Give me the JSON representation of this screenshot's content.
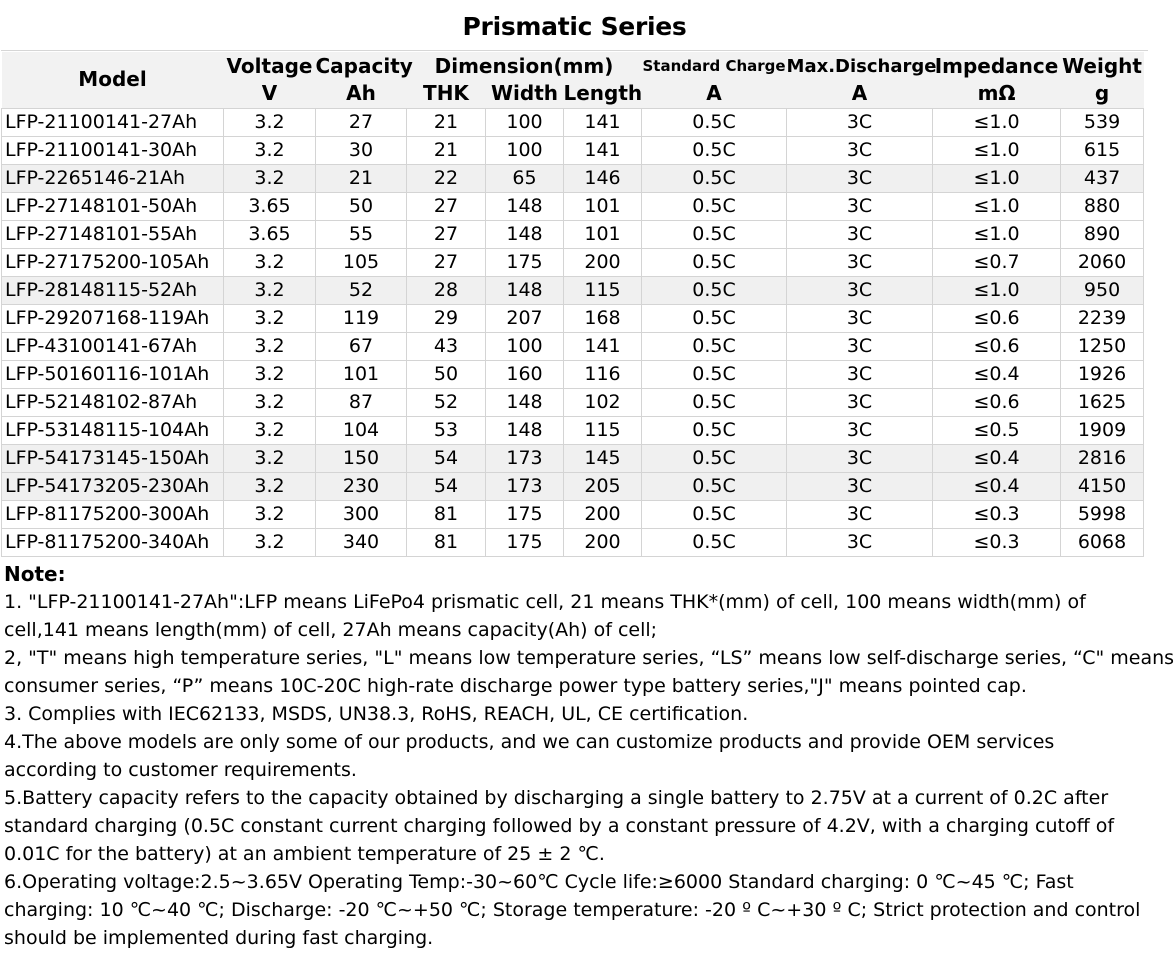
{
  "title": "Prismatic Series",
  "headers": {
    "model": "Model",
    "voltage": "Voltage",
    "voltage_unit": "V",
    "capacity": "Capacity",
    "capacity_unit": "Ah",
    "dimension": "Dimension(mm)",
    "thk": "THK",
    "width": "Width",
    "length": "Length",
    "std_charge": "Standard Charge",
    "std_charge_unit": "A",
    "max_discharge": "Max.Discharge",
    "max_discharge_unit": "A",
    "impedance": "Impedance",
    "impedance_unit": "mΩ",
    "weight": "Weight",
    "weight_unit": "g"
  },
  "rows": [
    {
      "model": "LFP-21100141-27Ah",
      "voltage": "3.2",
      "capacity": "27",
      "thk": "21",
      "width": "100",
      "length": "141",
      "std_charge": "0.5C",
      "max_discharge": "3C",
      "impedance": "≤1.0",
      "weight": "539"
    },
    {
      "model": "LFP-21100141-30Ah",
      "voltage": "3.2",
      "capacity": "30",
      "thk": "21",
      "width": "100",
      "length": "141",
      "std_charge": "0.5C",
      "max_discharge": "3C",
      "impedance": "≤1.0",
      "weight": "615"
    },
    {
      "model": "LFP-2265146-21Ah",
      "voltage": "3.2",
      "capacity": "21",
      "thk": "22",
      "width": "65",
      "length": "146",
      "std_charge": "0.5C",
      "max_discharge": "3C",
      "impedance": "≤1.0",
      "weight": "437"
    },
    {
      "model": "LFP-27148101-50Ah",
      "voltage": "3.65",
      "capacity": "50",
      "thk": "27",
      "width": "148",
      "length": "101",
      "std_charge": "0.5C",
      "max_discharge": "3C",
      "impedance": "≤1.0",
      "weight": "880"
    },
    {
      "model": "LFP-27148101-55Ah",
      "voltage": "3.65",
      "capacity": "55",
      "thk": "27",
      "width": "148",
      "length": "101",
      "std_charge": "0.5C",
      "max_discharge": "3C",
      "impedance": "≤1.0",
      "weight": "890"
    },
    {
      "model": "LFP-27175200-105Ah",
      "voltage": "3.2",
      "capacity": "105",
      "thk": "27",
      "width": "175",
      "length": "200",
      "std_charge": "0.5C",
      "max_discharge": "3C",
      "impedance": "≤0.7",
      "weight": "2060"
    },
    {
      "model": "LFP-28148115-52Ah",
      "voltage": "3.2",
      "capacity": "52",
      "thk": "28",
      "width": "148",
      "length": "115",
      "std_charge": "0.5C",
      "max_discharge": "3C",
      "impedance": "≤1.0",
      "weight": "950"
    },
    {
      "model": "LFP-29207168-119Ah",
      "voltage": "3.2",
      "capacity": "119",
      "thk": "29",
      "width": "207",
      "length": "168",
      "std_charge": "0.5C",
      "max_discharge": "3C",
      "impedance": "≤0.6",
      "weight": "2239"
    },
    {
      "model": "LFP-43100141-67Ah",
      "voltage": "3.2",
      "capacity": "67",
      "thk": "43",
      "width": "100",
      "length": "141",
      "std_charge": "0.5C",
      "max_discharge": "3C",
      "impedance": "≤0.6",
      "weight": "1250"
    },
    {
      "model": "LFP-50160116-101Ah",
      "voltage": "3.2",
      "capacity": "101",
      "thk": "50",
      "width": "160",
      "length": "116",
      "std_charge": "0.5C",
      "max_discharge": "3C",
      "impedance": "≤0.4",
      "weight": "1926"
    },
    {
      "model": "LFP-52148102-87Ah",
      "voltage": "3.2",
      "capacity": "87",
      "thk": "52",
      "width": "148",
      "length": "102",
      "std_charge": "0.5C",
      "max_discharge": "3C",
      "impedance": "≤0.6",
      "weight": "1625"
    },
    {
      "model": "LFP-53148115-104Ah",
      "voltage": "3.2",
      "capacity": "104",
      "thk": "53",
      "width": "148",
      "length": "115",
      "std_charge": "0.5C",
      "max_discharge": "3C",
      "impedance": "≤0.5",
      "weight": "1909"
    },
    {
      "model": "LFP-54173145-150Ah",
      "voltage": "3.2",
      "capacity": "150",
      "thk": "54",
      "width": "173",
      "length": "145",
      "std_charge": "0.5C",
      "max_discharge": "3C",
      "impedance": "≤0.4",
      "weight": "2816"
    },
    {
      "model": "LFP-54173205-230Ah",
      "voltage": "3.2",
      "capacity": "230",
      "thk": "54",
      "width": "173",
      "length": "205",
      "std_charge": "0.5C",
      "max_discharge": "3C",
      "impedance": "≤0.4",
      "weight": "4150"
    },
    {
      "model": "LFP-81175200-300Ah",
      "voltage": "3.2",
      "capacity": "300",
      "thk": "81",
      "width": "175",
      "length": "200",
      "std_charge": "0.5C",
      "max_discharge": "3C",
      "impedance": "≤0.3",
      "weight": "5998"
    },
    {
      "model": "LFP-81175200-340Ah",
      "voltage": "3.2",
      "capacity": "340",
      "thk": "81",
      "width": "175",
      "length": "200",
      "std_charge": "0.5C",
      "max_discharge": "3C",
      "impedance": "≤0.3",
      "weight": "6068"
    }
  ],
  "notes": {
    "heading": "Note:",
    "lines": [
      "1. \"LFP-21100141-27Ah\":LFP means LiFePo4 prismatic cell, 21 means THK*(mm) of cell, 100 means width(mm) of",
      "cell,141 means length(mm) of cell, 27Ah means capacity(Ah) of cell;",
      "2, \"T\" means high temperature series, \"L\" means low temperature series, “LS” means low self-discharge series, “C\" means",
      "consumer series, “P” means 10C-20C high-rate discharge power type battery series,\"J\" means pointed cap.",
      "3. Complies with IEC62133, MSDS, UN38.3, RoHS, REACH, UL, CE certification.",
      "4.The above models are only some of our products, and we can customize products and provide OEM services",
      "according to customer requirements.",
      "5.Battery capacity refers to the capacity obtained by discharging a single battery to 2.75V at a current of 0.2C after",
      "standard charging (0.5C constant current charging followed by a constant pressure of 4.2V, with a charging cutoff of",
      "0.01C for the battery) at an ambient temperature of 25 ± 2 ℃.",
      "6.Operating voltage:2.5~3.65V  Operating Temp:-30~60℃  Cycle life:≥6000 Standard charging: 0 ℃~45 ℃; Fast",
      "charging: 10 ℃~40 ℃; Discharge: -20 ℃~+50 ℃; Storage temperature: -20 º C~+30 º C; Strict protection and control",
      "should be implemented during fast charging."
    ]
  }
}
